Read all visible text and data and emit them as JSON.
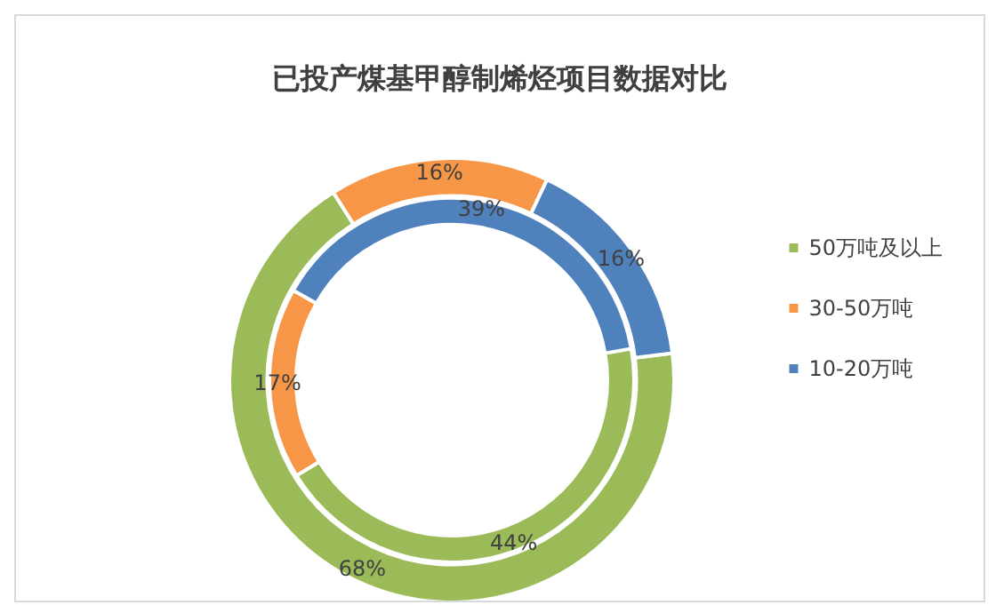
{
  "chart_data": {
    "type": "donut",
    "title": "已投产煤基甲醇制烯烃项目数据对比",
    "categories": [
      "50万吨及以上",
      "30-50万吨",
      "10-20万吨"
    ],
    "colors": [
      "#9bbb59",
      "#f79646",
      "#4f81bd"
    ],
    "series": [
      {
        "values": [
          68,
          16,
          16
        ],
        "value_labels": [
          "68%",
          "16%",
          "16%"
        ]
      },
      {
        "values": [
          44,
          17,
          39
        ],
        "value_labels": [
          "44%",
          "17%",
          "39%"
        ]
      }
    ],
    "legend": "right"
  }
}
